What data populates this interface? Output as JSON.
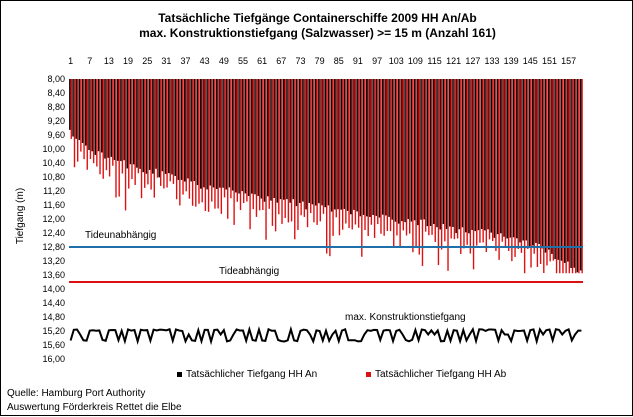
{
  "chart_data": {
    "type": "bar",
    "title": "Tatsächliche Tiefgänge Containerschiffe  2009 HH An/Ab",
    "subtitle": "max. Konstruktionstiefgang  (Salzwasser)  >= 15 m (Anzahl 161)",
    "ylabel": "Tiefgang (m)",
    "xlabel": "",
    "ylim": [
      8.0,
      16.0
    ],
    "y_inverted": true,
    "y_ticks": [
      "8,00",
      "8,40",
      "8,80",
      "9,20",
      "9,60",
      "10,00",
      "10,40",
      "10,80",
      "11,20",
      "11,60",
      "12,00",
      "12,40",
      "12,80",
      "13,20",
      "13,60",
      "14,00",
      "14,40",
      "14,80",
      "15,20",
      "15,60",
      "16,00"
    ],
    "x_ticks": [
      "1",
      "7",
      "13",
      "19",
      "25",
      "31",
      "37",
      "43",
      "49",
      "55",
      "61",
      "67",
      "73",
      "79",
      "85",
      "91",
      "97",
      "103",
      "109",
      "115",
      "121",
      "127",
      "133",
      "139",
      "145",
      "151",
      "157"
    ],
    "x_tick_position": "top",
    "count": 161,
    "series": [
      {
        "name": "Tatsächlicher Tiefgang HH An",
        "color": "#000000"
      },
      {
        "name": "Tatsächlicher Tiefgang HH Ab",
        "color": "#dd1111"
      },
      {
        "name": "max. Konstruktionstiefgang",
        "type": "line",
        "color": "#000000",
        "range": [
          15.0,
          15.5
        ]
      }
    ],
    "reference_lines": [
      {
        "label": "Tideunabhängig",
        "value": 12.8,
        "color": "#1f6fa8"
      },
      {
        "label": "Tideabhängig",
        "value": 13.8,
        "color": "#dd1111"
      }
    ],
    "legend_position": "bottom",
    "grid": false
  },
  "legend": {
    "an_label": "Tatsächlicher Tiefgang HH An",
    "ab_label": "Tatsächlicher Tiefgang HH Ab"
  },
  "annotations": {
    "tideunabhaengig": "Tideunabhängig",
    "tideabhaengig": "Tideabhängig",
    "konstruktion": "max. Konstruktionstiefgang"
  },
  "source": {
    "line1": "Quelle: Hamburg Port Authority",
    "line2": "Auswertung Förderkreis Rettet die Elbe"
  }
}
